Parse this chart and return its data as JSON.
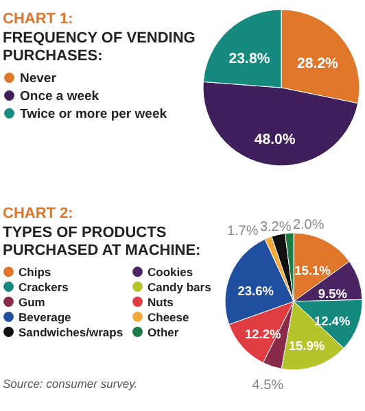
{
  "chart_data": [
    {
      "type": "pie",
      "title": "CHART 1:",
      "subtitle": "FREQUENCY OF VENDING PURCHASES:",
      "legend": "left",
      "categories": [
        "Never",
        "Once a week",
        "Twice or more per week"
      ],
      "values": [
        28.2,
        48.0,
        23.8
      ],
      "value_labels": [
        "28.2%",
        "48.0%",
        "23.8%"
      ],
      "colors": [
        "#e0762a",
        "#3f1f5c",
        "#178a80"
      ]
    },
    {
      "type": "pie",
      "title": "CHART 2:",
      "subtitle": "TYPES OF PRODUCTS PURCHASED AT MACHINE:",
      "legend": "left",
      "categories": [
        "Chips",
        "Cookies",
        "Crackers",
        "Candy bars",
        "Gum",
        "Nuts",
        "Beverage",
        "Cheese",
        "Sandwiches/wraps",
        "Other"
      ],
      "values": [
        15.1,
        9.5,
        12.4,
        15.9,
        4.5,
        12.2,
        23.6,
        1.7,
        3.2,
        2.0
      ],
      "value_labels": [
        "15.1%",
        "9.5%",
        "12.4%",
        "15.9%",
        "4.5%",
        "12.2%",
        "23.6%",
        "1.7%",
        "3.2%",
        "2.0%"
      ],
      "colors": [
        "#e0762a",
        "#4a2463",
        "#16897f",
        "#b5c42a",
        "#8a2b4a",
        "#df3d42",
        "#1f4f9e",
        "#f2a93b",
        "#111111",
        "#1c7a45"
      ],
      "annotations": [
        "Source: consumer survey."
      ]
    }
  ]
}
